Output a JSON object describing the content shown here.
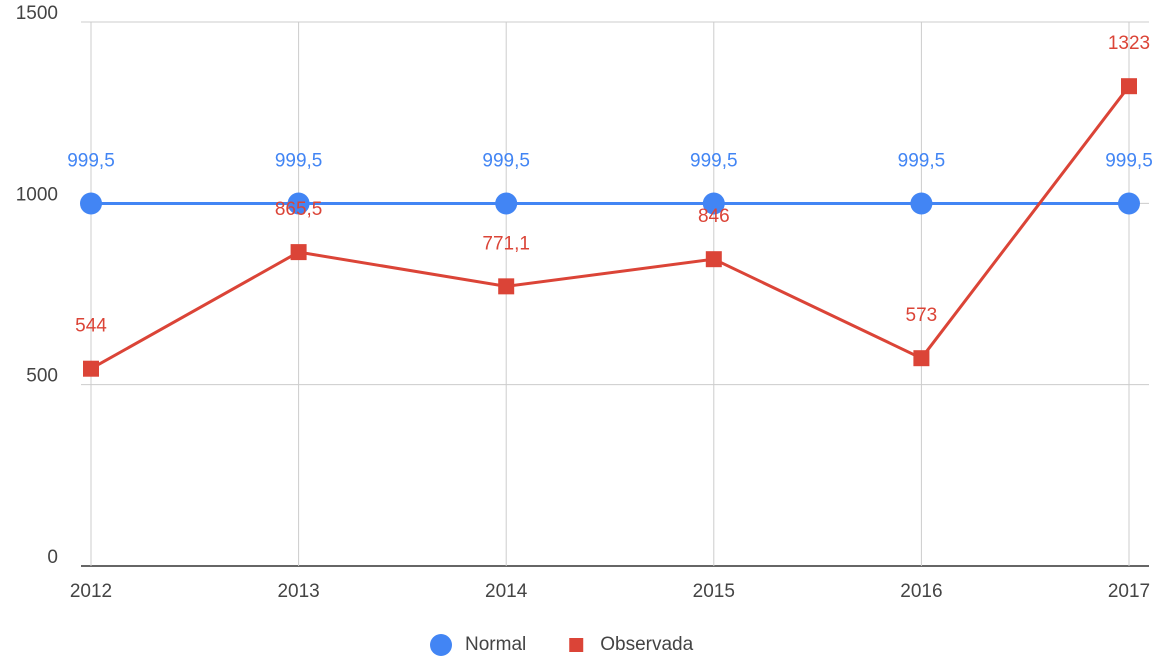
{
  "chart_data": {
    "type": "line",
    "categories": [
      "2012",
      "2013",
      "2014",
      "2015",
      "2016",
      "2017"
    ],
    "series": [
      {
        "name": "Normal",
        "color": "#4285f4",
        "marker": "circle",
        "values": [
          999.5,
          999.5,
          999.5,
          999.5,
          999.5,
          999.5
        ],
        "value_labels": [
          "999,5",
          "999,5",
          "999,5",
          "999,5",
          "999,5",
          "999,5"
        ]
      },
      {
        "name": "Observada",
        "color": "#db4437",
        "marker": "square",
        "values": [
          544,
          865.5,
          771.1,
          846,
          573,
          1323
        ],
        "value_labels": [
          "544",
          "865,5",
          "771,1",
          "846",
          "573",
          "1323"
        ]
      }
    ],
    "ylim": [
      0,
      1500
    ],
    "yticks": [
      0,
      500,
      1000,
      1500
    ],
    "grid": true,
    "legend": "bottom"
  }
}
